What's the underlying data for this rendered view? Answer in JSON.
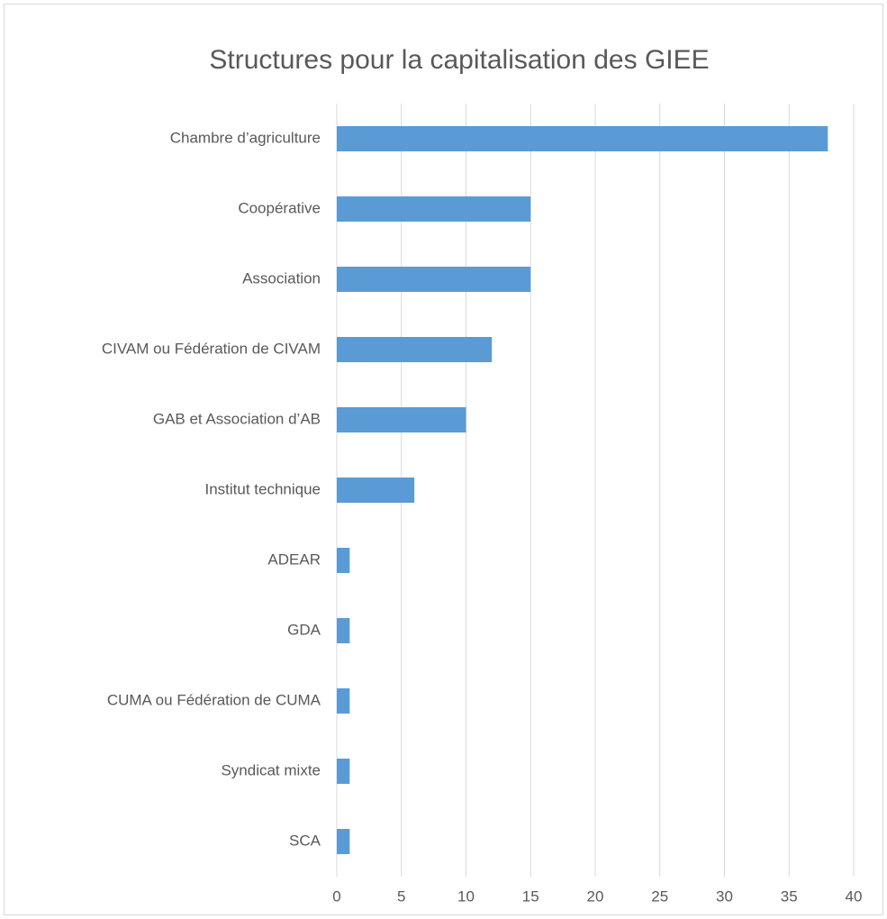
{
  "chart_data": {
    "type": "bar",
    "orientation": "horizontal",
    "title": "Structures pour la capitalisation des GIEE",
    "categories": [
      "Chambre d’agriculture",
      "Coopérative",
      "Association",
      "CIVAM ou Fédération de CIVAM",
      "GAB et Association d’AB",
      "Institut technique",
      "ADEAR",
      "GDA",
      "CUMA ou Fédération de CUMA",
      "Syndicat mixte",
      "SCA"
    ],
    "values": [
      38,
      15,
      15,
      12,
      10,
      6,
      1,
      1,
      1,
      1,
      1
    ],
    "color": "#5b9bd5",
    "xlim": [
      0,
      40
    ],
    "xticks": [
      0,
      5,
      10,
      15,
      20,
      25,
      30,
      35,
      40
    ],
    "grid": true
  }
}
